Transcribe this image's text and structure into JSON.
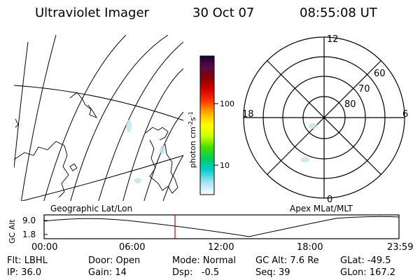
{
  "header": {
    "instrument": "Ultraviolet Imager",
    "date": "30 Oct 07",
    "time": "08:55:08 UT"
  },
  "colorbar": {
    "unit_label": "photon cm-2s-1",
    "unit_main": "photon cm",
    "unit_exp1": "-2",
    "unit_s": "s",
    "unit_exp2": "-1",
    "tick_100": "100",
    "tick_10": "10",
    "colors": [
      "#1a0033",
      "#5a0a4a",
      "#8b0000",
      "#d40000",
      "#ff3300",
      "#ff8800",
      "#ffcc00",
      "#ffff00",
      "#c8ff00",
      "#44dd00",
      "#00cc66",
      "#00cccc",
      "#99ddee",
      "#ffffff"
    ]
  },
  "polar_plot": {
    "mlt_top": "12",
    "mlt_left": "18",
    "mlt_right": "6",
    "mlt_bottom": "0",
    "lat_60": "60",
    "lat_70": "70",
    "lat_80": "80"
  },
  "panel_labels": {
    "left": "Geographic Lat/Lon",
    "right": "Apex MLat/MLT"
  },
  "altitude_plot": {
    "ylabel": "GC Alt",
    "ytick_high": "9.0",
    "ytick_low": "1.8",
    "xticks": [
      "00:00",
      "06:00",
      "12:00",
      "18:00",
      "23:59"
    ],
    "marker_color": "#d40000"
  },
  "info": {
    "flt": "Flt: LBHL",
    "ip": "IP: 36.0",
    "door": "Door: Open",
    "gain": "Gain: 14",
    "mode": "Mode: Normal",
    "dsp": "Dsp:   -0.5",
    "gc_alt": "GC Alt: 7.6 Re",
    "seq": "Seq: 39",
    "glat": "GLat: -49.5",
    "glon": "GLon: 167.2"
  }
}
